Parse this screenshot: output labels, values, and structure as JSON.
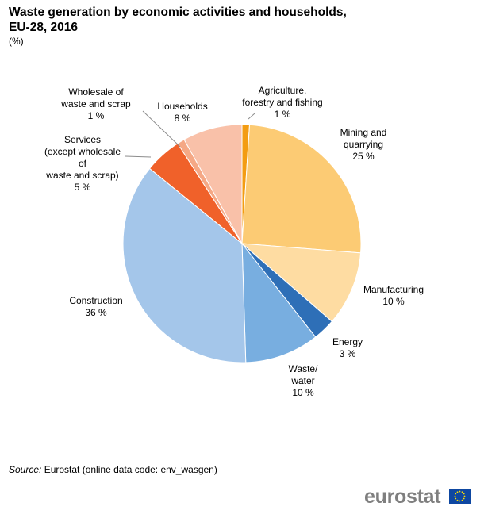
{
  "header": {
    "title_line1": "Waste generation by economic activities and households,",
    "title_line2": "EU-28, 2016",
    "unit": "(%)"
  },
  "chart_data": {
    "type": "pie",
    "title": "Waste generation by economic activities and households, EU-28, 2016",
    "unit": "(%)",
    "slices": [
      {
        "name": "Agriculture, forestry and fishing",
        "value": 1,
        "color": "#f39c12"
      },
      {
        "name": "Mining and quarrying",
        "value": 25,
        "color": "#fccb74"
      },
      {
        "name": "Manufacturing",
        "value": 10,
        "color": "#fedca2"
      },
      {
        "name": "Energy",
        "value": 3,
        "color": "#2e6fb7"
      },
      {
        "name": "Waste/ water",
        "value": 10,
        "color": "#78aee0"
      },
      {
        "name": "Construction",
        "value": 36,
        "color": "#a4c6ea"
      },
      {
        "name": "Services (except wholesale of waste and scrap)",
        "value": 5,
        "color": "#f0612a"
      },
      {
        "name": "Wholesale of waste and scrap",
        "value": 1,
        "color": "#f5a885"
      },
      {
        "name": "Households",
        "value": 8,
        "color": "#f9c1a9"
      }
    ],
    "labels": [
      {
        "lines": [
          "Agriculture,",
          "forestry and fishing",
          "1 %"
        ]
      },
      {
        "lines": [
          "Mining and",
          "quarrying",
          "25 %"
        ]
      },
      {
        "lines": [
          "Manufacturing",
          "10 %"
        ]
      },
      {
        "lines": [
          "Energy",
          "3 %"
        ]
      },
      {
        "lines": [
          "Waste/",
          "water",
          "10 %"
        ]
      },
      {
        "lines": [
          "Construction",
          "36 %"
        ]
      },
      {
        "lines": [
          "Services",
          "(except wholesale",
          "of",
          "waste and scrap)",
          "5 %"
        ]
      },
      {
        "lines": [
          "Wholesale of",
          "waste and scrap",
          "1 %"
        ]
      },
      {
        "lines": [
          "Households",
          "8 %"
        ]
      }
    ]
  },
  "footer": {
    "source_label": "Source:",
    "source_text": " Eurostat (online data code: env_wasgen)",
    "logo_text": "eurostat"
  }
}
